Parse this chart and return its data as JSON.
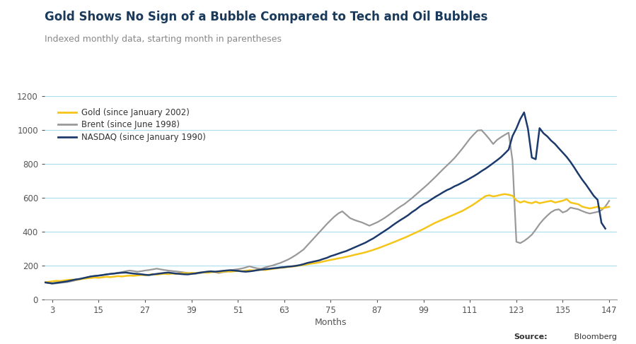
{
  "title": "Gold Shows No Sign of a Bubble Compared to Tech and Oil Bubbles",
  "subtitle": "Indexed monthly data, starting month in parentheses",
  "xlabel": "Months",
  "source_bold": "Source:",
  "source_normal": " Bloomberg",
  "title_color": "#1a3a5c",
  "subtitle_color": "#888888",
  "background_color": "#ffffff",
  "grid_color": "#aaddf0",
  "xlim": [
    1,
    149
  ],
  "ylim": [
    0,
    1200
  ],
  "xticks": [
    3,
    15,
    27,
    39,
    51,
    63,
    75,
    87,
    99,
    111,
    123,
    135,
    147
  ],
  "yticks": [
    0,
    200,
    400,
    600,
    800,
    1000,
    1200
  ],
  "gold_color": "#f5c518",
  "brent_color": "#999999",
  "nasdaq_color": "#1c3a6b",
  "legend_labels": [
    "Gold (since January 2002)",
    "Brent (since June 1998)",
    "NASDAQ (since January 1990)"
  ],
  "gold_data": [
    100,
    103,
    106,
    109,
    108,
    111,
    114,
    116,
    115,
    118,
    121,
    124,
    126,
    129,
    127,
    130,
    133,
    131,
    134,
    137,
    135,
    138,
    140,
    139,
    141,
    144,
    142,
    145,
    148,
    146,
    149,
    151,
    149,
    152,
    150,
    153,
    155,
    153,
    156,
    154,
    157,
    159,
    157,
    160,
    162,
    160,
    163,
    165,
    163,
    166,
    168,
    166,
    169,
    172,
    170,
    173,
    175,
    173,
    177,
    180,
    183,
    186,
    188,
    191,
    193,
    196,
    200,
    203,
    207,
    211,
    214,
    218,
    223,
    228,
    233,
    237,
    242,
    246,
    251,
    256,
    262,
    267,
    272,
    278,
    285,
    292,
    300,
    308,
    317,
    326,
    335,
    344,
    354,
    363,
    373,
    384,
    394,
    405,
    416,
    428,
    440,
    452,
    462,
    472,
    482,
    492,
    502,
    512,
    522,
    535,
    548,
    562,
    578,
    594,
    610,
    615,
    608,
    612,
    618,
    622,
    618,
    612,
    585,
    572,
    580,
    572,
    568,
    577,
    568,
    573,
    578,
    582,
    572,
    577,
    583,
    592,
    572,
    567,
    562,
    548,
    542,
    537,
    542,
    547,
    537,
    542,
    547
  ],
  "brent_data": [
    100,
    96,
    92,
    94,
    97,
    100,
    102,
    107,
    112,
    117,
    124,
    129,
    134,
    137,
    141,
    144,
    147,
    150,
    153,
    157,
    161,
    166,
    170,
    167,
    163,
    166,
    170,
    173,
    177,
    181,
    177,
    173,
    170,
    167,
    165,
    162,
    159,
    156,
    153,
    151,
    154,
    158,
    162,
    166,
    162,
    155,
    160,
    163,
    170,
    175,
    178,
    182,
    188,
    195,
    188,
    183,
    180,
    188,
    195,
    200,
    208,
    215,
    225,
    235,
    248,
    262,
    278,
    295,
    320,
    345,
    370,
    395,
    420,
    445,
    468,
    490,
    508,
    520,
    500,
    480,
    470,
    462,
    455,
    445,
    435,
    445,
    455,
    468,
    482,
    498,
    515,
    532,
    548,
    562,
    580,
    598,
    618,
    638,
    658,
    678,
    700,
    722,
    745,
    768,
    790,
    812,
    835,
    862,
    890,
    920,
    950,
    975,
    998,
    1000,
    975,
    948,
    918,
    942,
    958,
    972,
    985,
    820,
    340,
    332,
    345,
    362,
    382,
    412,
    445,
    472,
    495,
    515,
    528,
    532,
    513,
    522,
    542,
    537,
    532,
    522,
    513,
    507,
    512,
    517,
    527,
    548,
    582
  ],
  "nasdaq_data": [
    100,
    97,
    94,
    97,
    100,
    103,
    107,
    112,
    117,
    120,
    125,
    130,
    135,
    138,
    140,
    143,
    147,
    150,
    152,
    155,
    157,
    158,
    155,
    152,
    150,
    148,
    145,
    143,
    147,
    150,
    153,
    156,
    158,
    155,
    152,
    150,
    148,
    147,
    150,
    153,
    157,
    160,
    163,
    165,
    163,
    165,
    168,
    170,
    172,
    170,
    168,
    165,
    163,
    165,
    168,
    172,
    175,
    178,
    180,
    183,
    185,
    188,
    190,
    193,
    195,
    198,
    202,
    208,
    215,
    220,
    225,
    230,
    238,
    245,
    255,
    262,
    270,
    278,
    285,
    295,
    305,
    315,
    325,
    335,
    348,
    360,
    375,
    390,
    405,
    420,
    437,
    453,
    468,
    482,
    497,
    515,
    530,
    548,
    563,
    575,
    590,
    605,
    618,
    632,
    645,
    655,
    668,
    678,
    690,
    702,
    715,
    728,
    742,
    758,
    772,
    788,
    805,
    822,
    840,
    862,
    885,
    965,
    1010,
    1065,
    1105,
    1008,
    838,
    828,
    1012,
    982,
    963,
    938,
    918,
    892,
    867,
    842,
    812,
    778,
    742,
    708,
    678,
    645,
    612,
    588,
    452,
    418
  ]
}
